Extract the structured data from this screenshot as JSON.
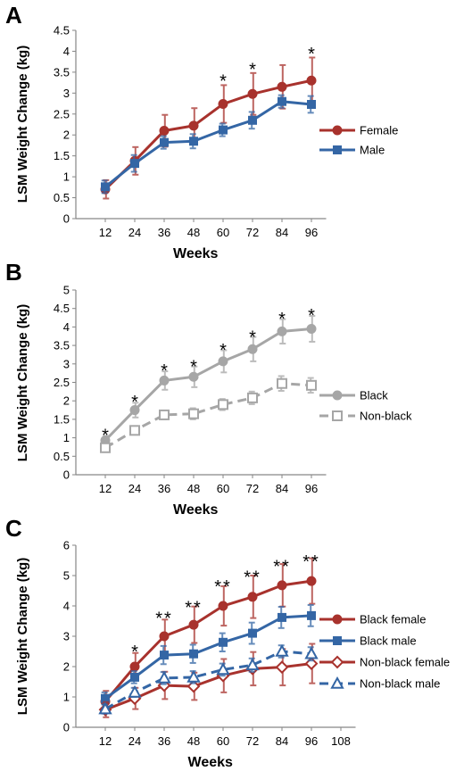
{
  "chart_data": [
    {
      "panel": "A",
      "type": "line",
      "xlabel": "Weeks",
      "ylabel": "LSM Weight Change (kg)",
      "ylim": [
        0,
        4.5
      ],
      "yticks": [
        0,
        0.5,
        1,
        1.5,
        2,
        2.5,
        3,
        3.5,
        4,
        4.5
      ],
      "ytick_labels": [
        "0",
        "0.5",
        "1",
        "1.5",
        "2",
        "2.5",
        "3",
        "3.5",
        "4",
        "4.5"
      ],
      "x": [
        12,
        24,
        36,
        48,
        60,
        72,
        84,
        96
      ],
      "legend_position": "right",
      "series": [
        {
          "name": "Female",
          "color": "#a8322d",
          "marker": "circle",
          "dash": "solid",
          "values": [
            0.7,
            1.38,
            2.1,
            2.22,
            2.74,
            2.98,
            3.15,
            3.3
          ],
          "errors": [
            0.22,
            0.33,
            0.38,
            0.42,
            0.45,
            0.5,
            0.52,
            0.55
          ]
        },
        {
          "name": "Male",
          "color": "#3466a5",
          "marker": "square",
          "dash": "solid",
          "values": [
            0.76,
            1.32,
            1.82,
            1.85,
            2.12,
            2.35,
            2.8,
            2.73
          ],
          "errors": [
            0.15,
            0.2,
            0.15,
            0.17,
            0.15,
            0.2,
            0.15,
            0.2
          ]
        }
      ],
      "annotations": [
        {
          "x": 60,
          "y": 3.4,
          "text": "*"
        },
        {
          "x": 72,
          "y": 3.68,
          "text": "*"
        },
        {
          "x": 96,
          "y": 4.05,
          "text": "*"
        }
      ]
    },
    {
      "panel": "B",
      "type": "line",
      "xlabel": "Weeks",
      "ylabel": "LSM Weight Change (kg)",
      "ylim": [
        0,
        5
      ],
      "yticks": [
        0,
        0.5,
        1,
        1.5,
        2,
        2.5,
        3,
        3.5,
        4,
        4.5,
        5
      ],
      "ytick_labels": [
        "0",
        "0.5",
        "1",
        "1.5",
        "2",
        "2.5",
        "3",
        "3.5",
        "4",
        "4.5",
        "5"
      ],
      "x": [
        12,
        24,
        36,
        48,
        60,
        72,
        84,
        96
      ],
      "legend_position": "right",
      "series": [
        {
          "name": "Black",
          "color": "#a6a6a6",
          "marker": "circle",
          "dash": "solid",
          "values": [
            0.93,
            1.75,
            2.55,
            2.65,
            3.07,
            3.4,
            3.88,
            3.95
          ],
          "errors": [
            0.12,
            0.2,
            0.25,
            0.28,
            0.3,
            0.33,
            0.33,
            0.35
          ]
        },
        {
          "name": "Non-black",
          "color": "#a6a6a6",
          "marker": "square-open",
          "dash": "dashed",
          "values": [
            0.73,
            1.2,
            1.62,
            1.65,
            1.9,
            2.08,
            2.47,
            2.42
          ],
          "errors": [
            0.1,
            0.1,
            0.12,
            0.15,
            0.15,
            0.17,
            0.2,
            0.2
          ]
        }
      ],
      "annotations": [
        {
          "x": 12,
          "y": 1.2,
          "text": "*"
        },
        {
          "x": 24,
          "y": 2.1,
          "text": "*"
        },
        {
          "x": 36,
          "y": 2.95,
          "text": "*"
        },
        {
          "x": 48,
          "y": 3.05,
          "text": "*"
        },
        {
          "x": 60,
          "y": 3.5,
          "text": "*"
        },
        {
          "x": 72,
          "y": 3.85,
          "text": "*"
        },
        {
          "x": 84,
          "y": 4.35,
          "text": "*"
        },
        {
          "x": 96,
          "y": 4.45,
          "text": "*"
        }
      ]
    },
    {
      "panel": "C",
      "type": "line",
      "xlabel": "Weeks",
      "ylabel": "LSM Weight Change (kg)",
      "ylim": [
        0,
        6
      ],
      "yticks": [
        0,
        1,
        2,
        3,
        4,
        5,
        6
      ],
      "ytick_labels": [
        "0",
        "1",
        "2",
        "3",
        "4",
        "5",
        "6"
      ],
      "x": [
        12,
        24,
        36,
        48,
        60,
        72,
        84,
        96
      ],
      "xtick_labels": [
        "12",
        "24",
        "36",
        "48",
        "60",
        "72",
        "84",
        "96",
        "108"
      ],
      "legend_position": "right",
      "series": [
        {
          "name": "Black female",
          "color": "#a8322d",
          "marker": "circle",
          "dash": "solid",
          "values": [
            0.85,
            2.0,
            3.0,
            3.38,
            4.0,
            4.3,
            4.68,
            4.82
          ],
          "errors": [
            0.35,
            0.45,
            0.55,
            0.6,
            0.65,
            0.7,
            0.7,
            0.75
          ]
        },
        {
          "name": "Black male",
          "color": "#3466a5",
          "marker": "square",
          "dash": "solid",
          "values": [
            0.95,
            1.65,
            2.38,
            2.42,
            2.8,
            3.1,
            3.62,
            3.68
          ],
          "errors": [
            0.2,
            0.2,
            0.3,
            0.3,
            0.3,
            0.35,
            0.35,
            0.35
          ]
        },
        {
          "name": "Non-black female",
          "color": "#a8322d",
          "marker": "diamond-open",
          "dash": "solid",
          "values": [
            0.58,
            0.95,
            1.38,
            1.35,
            1.7,
            1.93,
            1.98,
            2.1
          ],
          "errors": [
            0.25,
            0.35,
            0.45,
            0.45,
            0.55,
            0.55,
            0.6,
            0.65
          ]
        },
        {
          "name": "Non-black male",
          "color": "#3466a5",
          "marker": "triangle-open",
          "dash": "dashed",
          "values": [
            0.6,
            1.15,
            1.62,
            1.65,
            1.9,
            2.05,
            2.5,
            2.42
          ],
          "errors": [
            0.15,
            0.15,
            0.2,
            0.2,
            0.2,
            0.22,
            0.2,
            0.22
          ]
        }
      ],
      "annotations": [
        {
          "x": 24,
          "y": 2.65,
          "text": "*"
        },
        {
          "x": 36,
          "y": 3.75,
          "text": "**"
        },
        {
          "x": 48,
          "y": 4.1,
          "text": "**"
        },
        {
          "x": 60,
          "y": 4.8,
          "text": "**"
        },
        {
          "x": 72,
          "y": 5.1,
          "text": "**"
        },
        {
          "x": 84,
          "y": 5.45,
          "text": "**"
        },
        {
          "x": 96,
          "y": 5.62,
          "text": "**"
        }
      ]
    }
  ]
}
